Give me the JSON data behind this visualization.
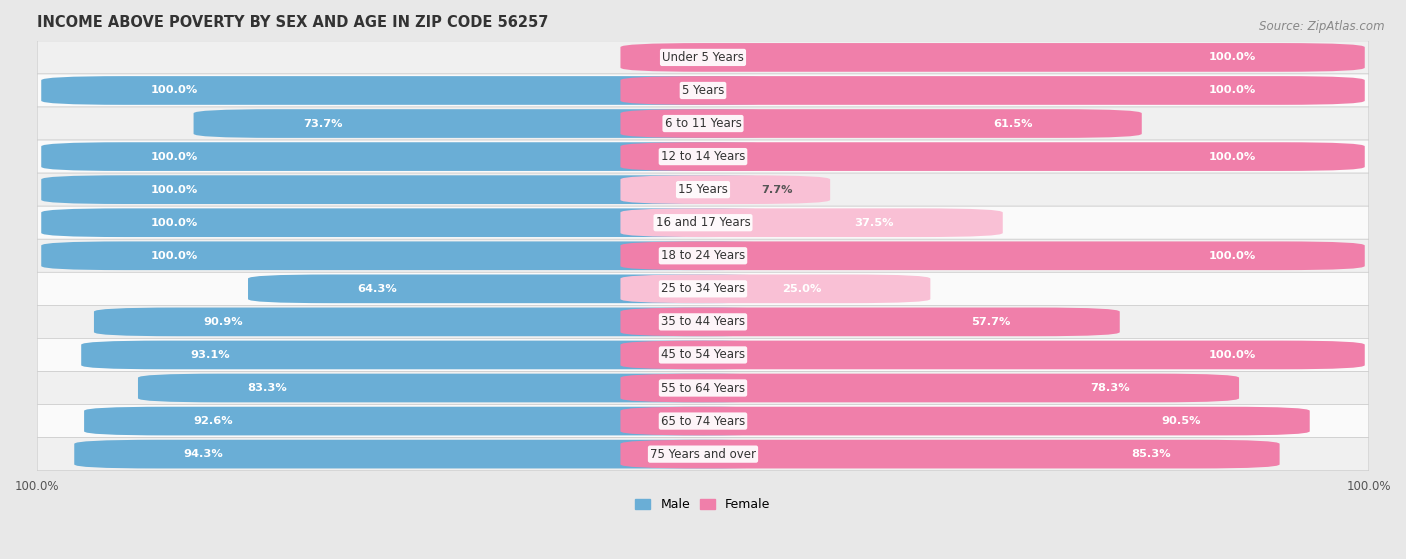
{
  "title": "INCOME ABOVE POVERTY BY SEX AND AGE IN ZIP CODE 56257",
  "source": "Source: ZipAtlas.com",
  "categories": [
    "Under 5 Years",
    "5 Years",
    "6 to 11 Years",
    "12 to 14 Years",
    "15 Years",
    "16 and 17 Years",
    "18 to 24 Years",
    "25 to 34 Years",
    "35 to 44 Years",
    "45 to 54 Years",
    "55 to 64 Years",
    "65 to 74 Years",
    "75 Years and over"
  ],
  "male_values": [
    0.0,
    100.0,
    73.7,
    100.0,
    100.0,
    100.0,
    100.0,
    64.3,
    90.9,
    93.1,
    83.3,
    92.6,
    94.3
  ],
  "female_values": [
    100.0,
    100.0,
    61.5,
    100.0,
    7.7,
    37.5,
    100.0,
    25.0,
    57.7,
    100.0,
    78.3,
    90.5,
    85.3
  ],
  "male_color": "#6aaed6",
  "female_color": "#f07faa",
  "male_color_light": "#b8d9ef",
  "female_color_light": "#f9c0d5",
  "male_label": "Male",
  "female_label": "Female",
  "bar_height": 0.62,
  "row_color_even": "#f0f0f0",
  "row_color_odd": "#fafafa",
  "title_fontsize": 10.5,
  "cat_fontsize": 8.5,
  "val_fontsize": 8.2,
  "tick_fontsize": 8.5,
  "legend_fontsize": 9,
  "source_fontsize": 8.5
}
